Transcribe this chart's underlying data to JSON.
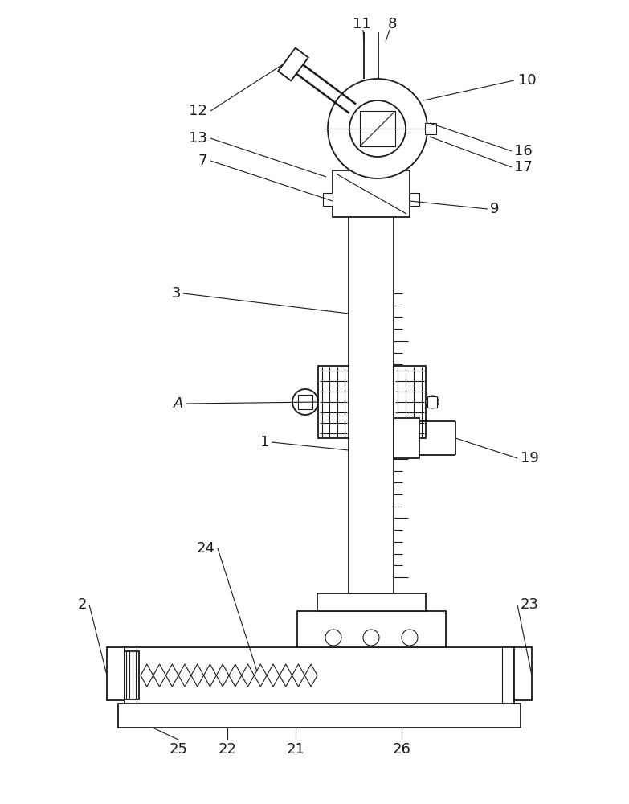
{
  "bg_color": "#ffffff",
  "line_color": "#1a1a1a",
  "lw": 1.3,
  "tlw": 0.8,
  "label_fs": 13,
  "fig_w": 7.83,
  "fig_h": 10.0,
  "dpi": 100
}
